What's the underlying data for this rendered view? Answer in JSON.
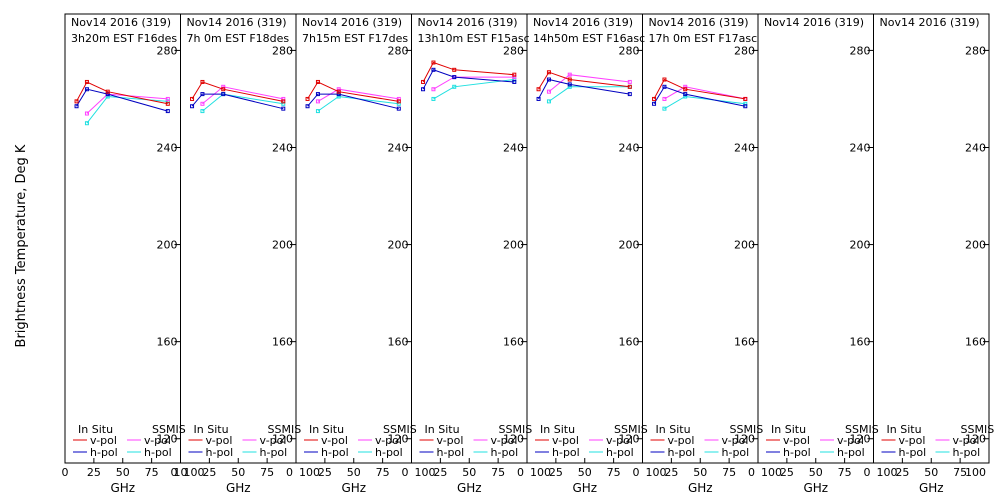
{
  "figure": {
    "ylabel": "Brightness Temperature, Deg K",
    "xlabel": "GHz",
    "legend_labels": {
      "in_situ": "In Situ",
      "ssmis": "SSMIS",
      "v_pol": "v-pol",
      "h_pol": "h-pol"
    },
    "colors": {
      "insitu_v": "#e00000",
      "insitu_h": "#0000c0",
      "ssmis_v": "#ff40ff",
      "ssmis_h": "#20e0e0",
      "frame": "#000000"
    }
  },
  "chart_data": {
    "type": "line",
    "xlim": [
      0,
      100
    ],
    "xticks": [
      0,
      25,
      50,
      75,
      100
    ],
    "xtick_labels": [
      "0",
      "25",
      "50",
      "75",
      "100"
    ],
    "first_panel_xtick_labels": [
      "0",
      "25",
      "50",
      "75",
      "10"
    ],
    "ylim": [
      110,
      295
    ],
    "yticks": [
      120,
      160,
      200,
      240,
      280
    ],
    "ytick_labels": [
      "120",
      "160",
      "200",
      "240",
      "280"
    ],
    "panels": [
      {
        "title": "Nov14 2016 (319)",
        "subtitle": "3h20m EST F16des",
        "insitu_v": {
          "x": [
            10,
            19,
            37,
            89
          ],
          "y": [
            259,
            267,
            263,
            258
          ]
        },
        "insitu_h": {
          "x": [
            10,
            19,
            37,
            89
          ],
          "y": [
            257,
            264,
            262,
            255
          ]
        },
        "ssmis_v": {
          "x": [
            19,
            37,
            89
          ],
          "y": [
            254,
            262,
            260
          ]
        },
        "ssmis_h": {
          "x": [
            19,
            37,
            89
          ],
          "y": [
            250,
            261,
            259
          ]
        }
      },
      {
        "title": "Nov14 2016 (319)",
        "subtitle": "7h 0m  EST F18des",
        "insitu_v": {
          "x": [
            10,
            19,
            37,
            89
          ],
          "y": [
            260,
            267,
            264,
            259
          ]
        },
        "insitu_h": {
          "x": [
            10,
            19,
            37,
            89
          ],
          "y": [
            257,
            262,
            262,
            256
          ]
        },
        "ssmis_v": {
          "x": [
            19,
            37,
            89
          ],
          "y": [
            258,
            265,
            260
          ]
        },
        "ssmis_h": {
          "x": [
            19,
            37,
            89
          ],
          "y": [
            255,
            262,
            258
          ]
        }
      },
      {
        "title": "Nov14 2016 (319)",
        "subtitle": "7h15m  EST F17des",
        "insitu_v": {
          "x": [
            10,
            19,
            37,
            89
          ],
          "y": [
            260,
            267,
            263,
            259
          ]
        },
        "insitu_h": {
          "x": [
            10,
            19,
            37,
            89
          ],
          "y": [
            257,
            262,
            262,
            256
          ]
        },
        "ssmis_v": {
          "x": [
            19,
            37,
            89
          ],
          "y": [
            259,
            264,
            260
          ]
        },
        "ssmis_h": {
          "x": [
            19,
            37,
            89
          ],
          "y": [
            255,
            261,
            258
          ]
        }
      },
      {
        "title": "Nov14 2016 (319)",
        "subtitle": "13h10m  EST F15asc",
        "insitu_v": {
          "x": [
            10,
            19,
            37,
            89
          ],
          "y": [
            267,
            275,
            272,
            270
          ]
        },
        "insitu_h": {
          "x": [
            10,
            19,
            37,
            89
          ],
          "y": [
            264,
            272,
            269,
            267
          ]
        },
        "ssmis_v": {
          "x": [
            19,
            37,
            89
          ],
          "y": [
            264,
            269,
            269
          ]
        },
        "ssmis_h": {
          "x": [
            19,
            37,
            89
          ],
          "y": [
            260,
            265,
            268
          ]
        }
      },
      {
        "title": "Nov14 2016 (319)",
        "subtitle": "14h50m  EST F16asc",
        "insitu_v": {
          "x": [
            10,
            19,
            37,
            89
          ],
          "y": [
            264,
            271,
            268,
            265
          ]
        },
        "insitu_h": {
          "x": [
            10,
            19,
            37,
            89
          ],
          "y": [
            260,
            268,
            266,
            262
          ]
        },
        "ssmis_v": {
          "x": [
            19,
            37,
            89
          ],
          "y": [
            263,
            270,
            267
          ]
        },
        "ssmis_h": {
          "x": [
            19,
            37,
            89
          ],
          "y": [
            259,
            265,
            265
          ]
        }
      },
      {
        "title": "Nov14 2016 (319)",
        "subtitle": "17h 0m  EST F17asc",
        "insitu_v": {
          "x": [
            10,
            19,
            37,
            89
          ],
          "y": [
            260,
            268,
            264,
            260
          ]
        },
        "insitu_h": {
          "x": [
            10,
            19,
            37,
            89
          ],
          "y": [
            258,
            265,
            262,
            257
          ]
        },
        "ssmis_v": {
          "x": [
            19,
            37,
            89
          ],
          "y": [
            260,
            265,
            260
          ]
        },
        "ssmis_h": {
          "x": [
            19,
            37,
            89
          ],
          "y": [
            256,
            261,
            258
          ]
        }
      },
      {
        "title": "Nov14 2016 (319)",
        "subtitle": "",
        "insitu_v": {
          "x": [],
          "y": []
        },
        "insitu_h": {
          "x": [],
          "y": []
        },
        "ssmis_v": {
          "x": [],
          "y": []
        },
        "ssmis_h": {
          "x": [],
          "y": []
        }
      },
      {
        "title": "Nov14 2016 (319)",
        "subtitle": "",
        "insitu_v": {
          "x": [],
          "y": []
        },
        "insitu_h": {
          "x": [],
          "y": []
        },
        "ssmis_v": {
          "x": [],
          "y": []
        },
        "ssmis_h": {
          "x": [],
          "y": []
        }
      }
    ]
  }
}
